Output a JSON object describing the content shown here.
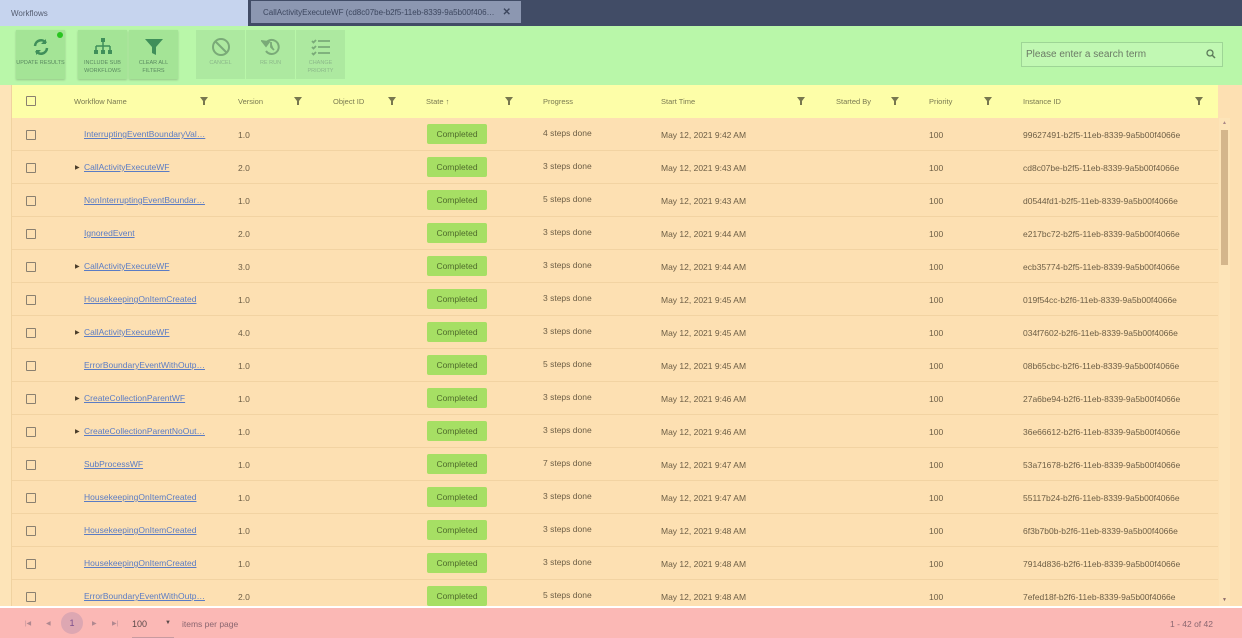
{
  "tabs": [
    {
      "label": "Workflows"
    },
    {
      "label": "CallActivityExecuteWF (cd8c07be-b2f5-11eb-8339-9a5b00f406…",
      "close_icon": "close-icon"
    }
  ],
  "toolbar": {
    "update": "UPDATE RESULTS",
    "include_sub": "INCLUDE SUB WORKFLOWS",
    "clear_filters": "CLEAR ALL FILTERS",
    "cancel": "CANCEL",
    "rerun": "RE RUN",
    "change_priority": "CHANGE PRIORITY",
    "search_placeholder": "Please enter a search term",
    "status_dot_color": "#29c41f"
  },
  "columns": {
    "name": "Workflow Name",
    "version": "Version",
    "object_id": "Object ID",
    "state": "State ↑",
    "progress": "Progress",
    "start_time": "Start Time",
    "started_by": "Started By",
    "priority": "Priority",
    "instance_id": "Instance ID"
  },
  "rows": [
    {
      "name": "InterruptingEventBoundaryVal…",
      "expandable": false,
      "version": "1.0",
      "state": "Completed",
      "progress": "4 steps done",
      "start": "May 12, 2021 9:42 AM",
      "priority": "100",
      "id": "99627491-b2f5-11eb-8339-9a5b00f4066e"
    },
    {
      "name": "CallActivityExecuteWF",
      "expandable": true,
      "version": "2.0",
      "state": "Completed",
      "progress": "3 steps done",
      "start": "May 12, 2021 9:43 AM",
      "priority": "100",
      "id": "cd8c07be-b2f5-11eb-8339-9a5b00f4066e"
    },
    {
      "name": "NonInterruptingEventBoundar…",
      "expandable": false,
      "version": "1.0",
      "state": "Completed",
      "progress": "5 steps done",
      "start": "May 12, 2021 9:43 AM",
      "priority": "100",
      "id": "d0544fd1-b2f5-11eb-8339-9a5b00f4066e"
    },
    {
      "name": "IgnoredEvent",
      "expandable": false,
      "version": "2.0",
      "state": "Completed",
      "progress": "3 steps done",
      "start": "May 12, 2021 9:44 AM",
      "priority": "100",
      "id": "e217bc72-b2f5-11eb-8339-9a5b00f4066e"
    },
    {
      "name": "CallActivityExecuteWF",
      "expandable": true,
      "version": "3.0",
      "state": "Completed",
      "progress": "3 steps done",
      "start": "May 12, 2021 9:44 AM",
      "priority": "100",
      "id": "ecb35774-b2f5-11eb-8339-9a5b00f4066e"
    },
    {
      "name": "HousekeepingOnItemCreated",
      "expandable": false,
      "version": "1.0",
      "state": "Completed",
      "progress": "3 steps done",
      "start": "May 12, 2021 9:45 AM",
      "priority": "100",
      "id": "019f54cc-b2f6-11eb-8339-9a5b00f4066e"
    },
    {
      "name": "CallActivityExecuteWF",
      "expandable": true,
      "version": "4.0",
      "state": "Completed",
      "progress": "3 steps done",
      "start": "May 12, 2021 9:45 AM",
      "priority": "100",
      "id": "034f7602-b2f6-11eb-8339-9a5b00f4066e"
    },
    {
      "name": "ErrorBoundaryEventWithOutp…",
      "expandable": false,
      "version": "1.0",
      "state": "Completed",
      "progress": "5 steps done",
      "start": "May 12, 2021 9:45 AM",
      "priority": "100",
      "id": "08b65cbc-b2f6-11eb-8339-9a5b00f4066e"
    },
    {
      "name": "CreateCollectionParentWF",
      "expandable": true,
      "version": "1.0",
      "state": "Completed",
      "progress": "3 steps done",
      "start": "May 12, 2021 9:46 AM",
      "priority": "100",
      "id": "27a6be94-b2f6-11eb-8339-9a5b00f4066e"
    },
    {
      "name": "CreateCollectionParentNoOut…",
      "expandable": true,
      "version": "1.0",
      "state": "Completed",
      "progress": "3 steps done",
      "start": "May 12, 2021 9:46 AM",
      "priority": "100",
      "id": "36e66612-b2f6-11eb-8339-9a5b00f4066e"
    },
    {
      "name": "SubProcessWF",
      "expandable": false,
      "version": "1.0",
      "state": "Completed",
      "progress": "7 steps done",
      "start": "May 12, 2021 9:47 AM",
      "priority": "100",
      "id": "53a71678-b2f6-11eb-8339-9a5b00f4066e"
    },
    {
      "name": "HousekeepingOnItemCreated",
      "expandable": false,
      "version": "1.0",
      "state": "Completed",
      "progress": "3 steps done",
      "start": "May 12, 2021 9:47 AM",
      "priority": "100",
      "id": "55117b24-b2f6-11eb-8339-9a5b00f4066e"
    },
    {
      "name": "HousekeepingOnItemCreated",
      "expandable": false,
      "version": "1.0",
      "state": "Completed",
      "progress": "3 steps done",
      "start": "May 12, 2021 9:48 AM",
      "priority": "100",
      "id": "6f3b7b0b-b2f6-11eb-8339-9a5b00f4066e"
    },
    {
      "name": "HousekeepingOnItemCreated",
      "expandable": false,
      "version": "1.0",
      "state": "Completed",
      "progress": "3 steps done",
      "start": "May 12, 2021 9:48 AM",
      "priority": "100",
      "id": "7914d836-b2f6-11eb-8339-9a5b00f4066e"
    },
    {
      "name": "ErrorBoundaryEventWithOutp…",
      "expandable": false,
      "version": "2.0",
      "state": "Completed",
      "progress": "5 steps done",
      "start": "May 12, 2021 9:48 AM",
      "priority": "100",
      "id": "7efed18f-b2f6-11eb-8339-9a5b00f4066e"
    }
  ],
  "footer": {
    "current_page": "1",
    "page_size": "100",
    "items_per_page": "items per page",
    "range": "1 - 42 of 42"
  },
  "colors": {
    "badge": "#a6df64",
    "toolbar": "#b9f7a9",
    "header": "#fdfea8",
    "rows": "#fde0b2",
    "footer": "#fbb8b5"
  }
}
